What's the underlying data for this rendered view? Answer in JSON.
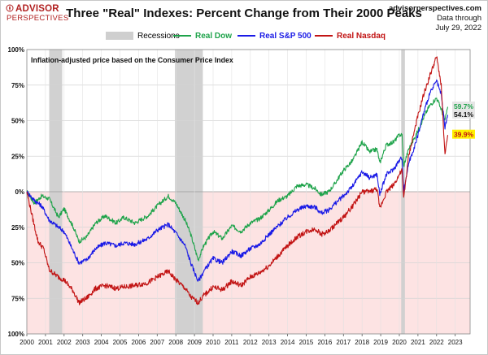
{
  "brand": {
    "name_line1": "ADVISOR",
    "name_line2": "PERSPECTIVES"
  },
  "header": {
    "title": "Three \"Real\" Indexes: Percent Change from Their 2000 Peaks",
    "source_url": "advisorperspectives.com",
    "data_through_label": "Data through",
    "data_through_date": "July 29, 2022"
  },
  "colors": {
    "dow": "#1ea34a",
    "sp500": "#1a1ae6",
    "nasdaq": "#c21414",
    "recession": "#cfcfcf",
    "negative_band": "#fde3e3",
    "sp_label_bg": "#e6e6e6",
    "dow_label_bg": "#e6e6e6",
    "nasdaq_label_bg": "#fff200"
  },
  "chart_data": {
    "type": "line",
    "title": "Three \"Real\" Indexes: Percent Change from Their 2000 Peaks",
    "annotation": "Inflation-adjusted  price based on the Consumer Price Index",
    "x_ticks": [
      "2000",
      "2001",
      "2002",
      "2003",
      "2004",
      "2005",
      "2006",
      "2007",
      "2008",
      "2009",
      "2010",
      "2011",
      "2012",
      "2013",
      "2014",
      "2015",
      "2016",
      "2017",
      "2018",
      "2019",
      "2020",
      "2021",
      "2022",
      "2023"
    ],
    "xlim": [
      2000,
      2023.8
    ],
    "y_ticks": [
      "100%",
      "75%",
      "50%",
      "25%",
      "0%",
      "25%",
      "50%",
      "75%",
      "100%"
    ],
    "y_tick_values": [
      100,
      75,
      50,
      25,
      0,
      -25,
      -50,
      -75,
      -100
    ],
    "ylim": [
      -100,
      100
    ],
    "recessions": [
      {
        "label": "Recessions",
        "start": 2001.2,
        "end": 2001.9
      },
      {
        "start": 2007.95,
        "end": 2009.45
      },
      {
        "start": 2020.1,
        "end": 2020.3
      }
    ],
    "series": [
      {
        "name": "Real Dow",
        "end_label": "59.7%",
        "points": [
          [
            2000.0,
            0
          ],
          [
            2000.4,
            -8
          ],
          [
            2000.8,
            -3
          ],
          [
            2001.2,
            -5
          ],
          [
            2001.7,
            -18
          ],
          [
            2002.0,
            -12
          ],
          [
            2002.5,
            -25
          ],
          [
            2002.8,
            -35
          ],
          [
            2003.2,
            -32
          ],
          [
            2003.7,
            -22
          ],
          [
            2004.2,
            -17
          ],
          [
            2004.8,
            -22
          ],
          [
            2005.2,
            -18
          ],
          [
            2005.8,
            -22
          ],
          [
            2006.5,
            -17
          ],
          [
            2007.0,
            -10
          ],
          [
            2007.6,
            -3
          ],
          [
            2008.0,
            -8
          ],
          [
            2008.5,
            -20
          ],
          [
            2008.8,
            -30
          ],
          [
            2009.2,
            -48
          ],
          [
            2009.5,
            -38
          ],
          [
            2010.0,
            -28
          ],
          [
            2010.5,
            -33
          ],
          [
            2011.0,
            -24
          ],
          [
            2011.5,
            -28
          ],
          [
            2012.0,
            -22
          ],
          [
            2012.5,
            -19
          ],
          [
            2013.0,
            -13
          ],
          [
            2013.5,
            -6
          ],
          [
            2014.0,
            -3
          ],
          [
            2014.5,
            4
          ],
          [
            2015.0,
            5
          ],
          [
            2015.5,
            2
          ],
          [
            2015.8,
            -2
          ],
          [
            2016.2,
            0
          ],
          [
            2016.5,
            5
          ],
          [
            2017.0,
            15
          ],
          [
            2017.5,
            22
          ],
          [
            2018.0,
            35
          ],
          [
            2018.4,
            28
          ],
          [
            2018.8,
            30
          ],
          [
            2018.95,
            20
          ],
          [
            2019.3,
            33
          ],
          [
            2019.7,
            35
          ],
          [
            2020.0,
            40
          ],
          [
            2020.15,
            40
          ],
          [
            2020.23,
            18
          ],
          [
            2020.5,
            30
          ],
          [
            2020.9,
            40
          ],
          [
            2021.3,
            52
          ],
          [
            2021.6,
            60
          ],
          [
            2022.0,
            66
          ],
          [
            2022.25,
            58
          ],
          [
            2022.45,
            50
          ],
          [
            2022.6,
            59.7
          ]
        ]
      },
      {
        "name": "Real S&P 500",
        "end_label": "54.1%",
        "points": [
          [
            2000.0,
            0
          ],
          [
            2000.4,
            -6
          ],
          [
            2000.8,
            -10
          ],
          [
            2001.2,
            -20
          ],
          [
            2001.7,
            -25
          ],
          [
            2002.0,
            -28
          ],
          [
            2002.5,
            -42
          ],
          [
            2002.8,
            -50
          ],
          [
            2003.2,
            -48
          ],
          [
            2003.7,
            -40
          ],
          [
            2004.2,
            -36
          ],
          [
            2004.8,
            -38
          ],
          [
            2005.2,
            -36
          ],
          [
            2005.8,
            -37
          ],
          [
            2006.5,
            -33
          ],
          [
            2007.0,
            -27
          ],
          [
            2007.6,
            -23
          ],
          [
            2008.0,
            -29
          ],
          [
            2008.5,
            -38
          ],
          [
            2008.8,
            -50
          ],
          [
            2009.2,
            -63
          ],
          [
            2009.5,
            -56
          ],
          [
            2010.0,
            -47
          ],
          [
            2010.5,
            -50
          ],
          [
            2011.0,
            -42
          ],
          [
            2011.5,
            -45
          ],
          [
            2012.0,
            -40
          ],
          [
            2012.5,
            -37
          ],
          [
            2013.0,
            -30
          ],
          [
            2013.5,
            -24
          ],
          [
            2014.0,
            -18
          ],
          [
            2014.5,
            -13
          ],
          [
            2015.0,
            -10
          ],
          [
            2015.5,
            -11
          ],
          [
            2015.8,
            -15
          ],
          [
            2016.2,
            -13
          ],
          [
            2016.5,
            -9
          ],
          [
            2017.0,
            -3
          ],
          [
            2017.5,
            4
          ],
          [
            2018.0,
            14
          ],
          [
            2018.4,
            10
          ],
          [
            2018.8,
            12
          ],
          [
            2018.95,
            -2
          ],
          [
            2019.3,
            12
          ],
          [
            2019.7,
            16
          ],
          [
            2020.0,
            22
          ],
          [
            2020.15,
            24
          ],
          [
            2020.23,
            0
          ],
          [
            2020.5,
            20
          ],
          [
            2020.9,
            35
          ],
          [
            2021.3,
            55
          ],
          [
            2021.6,
            68
          ],
          [
            2022.0,
            78
          ],
          [
            2022.25,
            68
          ],
          [
            2022.45,
            45
          ],
          [
            2022.6,
            54.1
          ]
        ]
      },
      {
        "name": "Real Nasdaq",
        "end_label": "39.9%",
        "points": [
          [
            2000.0,
            0
          ],
          [
            2000.3,
            -18
          ],
          [
            2000.6,
            -35
          ],
          [
            2000.9,
            -40
          ],
          [
            2001.2,
            -55
          ],
          [
            2001.7,
            -60
          ],
          [
            2002.0,
            -62
          ],
          [
            2002.5,
            -70
          ],
          [
            2002.8,
            -78
          ],
          [
            2003.2,
            -75
          ],
          [
            2003.7,
            -68
          ],
          [
            2004.2,
            -66
          ],
          [
            2004.8,
            -68
          ],
          [
            2005.2,
            -67
          ],
          [
            2005.8,
            -66
          ],
          [
            2006.5,
            -64
          ],
          [
            2007.0,
            -60
          ],
          [
            2007.6,
            -56
          ],
          [
            2008.0,
            -62
          ],
          [
            2008.5,
            -68
          ],
          [
            2008.8,
            -74
          ],
          [
            2009.2,
            -78
          ],
          [
            2009.5,
            -73
          ],
          [
            2010.0,
            -67
          ],
          [
            2010.5,
            -69
          ],
          [
            2011.0,
            -63
          ],
          [
            2011.5,
            -66
          ],
          [
            2012.0,
            -60
          ],
          [
            2012.5,
            -57
          ],
          [
            2013.0,
            -52
          ],
          [
            2013.5,
            -45
          ],
          [
            2014.0,
            -38
          ],
          [
            2014.5,
            -32
          ],
          [
            2015.0,
            -28
          ],
          [
            2015.5,
            -26
          ],
          [
            2015.8,
            -30
          ],
          [
            2016.2,
            -28
          ],
          [
            2016.5,
            -24
          ],
          [
            2017.0,
            -18
          ],
          [
            2017.5,
            -10
          ],
          [
            2018.0,
            0
          ],
          [
            2018.4,
            0
          ],
          [
            2018.8,
            2
          ],
          [
            2018.95,
            -12
          ],
          [
            2019.3,
            0
          ],
          [
            2019.7,
            5
          ],
          [
            2020.0,
            12
          ],
          [
            2020.15,
            15
          ],
          [
            2020.23,
            -5
          ],
          [
            2020.5,
            25
          ],
          [
            2020.9,
            48
          ],
          [
            2021.3,
            68
          ],
          [
            2021.6,
            80
          ],
          [
            2022.0,
            95
          ],
          [
            2022.25,
            75
          ],
          [
            2022.45,
            25
          ],
          [
            2022.6,
            39.9
          ]
        ]
      }
    ]
  }
}
